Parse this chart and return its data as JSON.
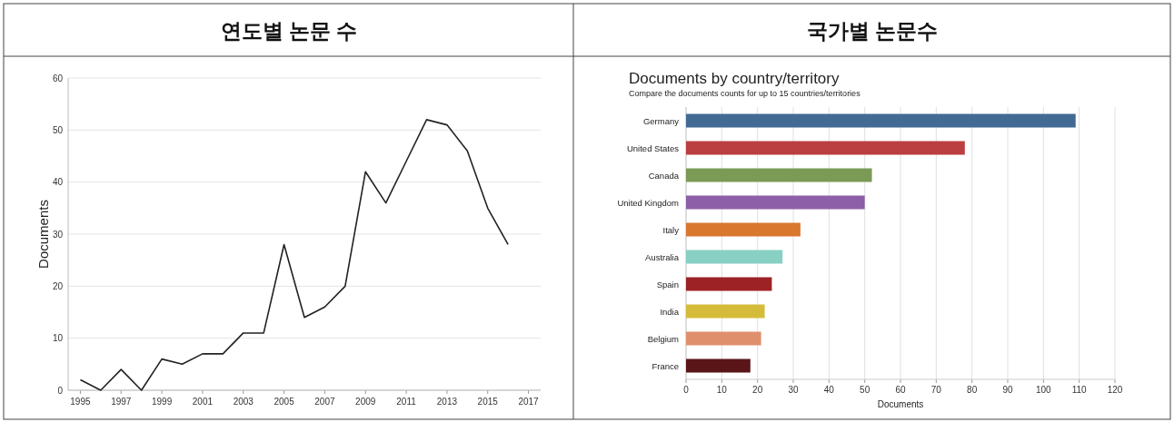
{
  "chart_data": [
    {
      "type": "line",
      "title": "연도별 논문 수",
      "ylabel": "Documents",
      "x": [
        1995,
        1996,
        1997,
        1998,
        1999,
        2000,
        2001,
        2002,
        2003,
        2004,
        2005,
        2006,
        2007,
        2008,
        2009,
        2010,
        2011,
        2012,
        2013,
        2014,
        2015,
        2016
      ],
      "series": [
        {
          "color": "#222222",
          "values": [
            2,
            0,
            4,
            0,
            6,
            5,
            7,
            7,
            11,
            11,
            28,
            14,
            16,
            20,
            42,
            36,
            44,
            52,
            51,
            46,
            35,
            28
          ]
        }
      ],
      "xlim": [
        1994.4,
        2017.6
      ],
      "xticks": [
        1995,
        1997,
        1999,
        2001,
        2003,
        2005,
        2007,
        2009,
        2011,
        2013,
        2015,
        2017
      ],
      "ylim": [
        0,
        60
      ],
      "yticks": [
        0,
        10,
        20,
        30,
        40,
        50,
        60
      ],
      "grid": "y",
      "marker": "none",
      "line_style": "solid"
    },
    {
      "type": "bar",
      "orientation": "horizontal",
      "title": "국가별 논문수",
      "subtitle": "Documents by country/territory",
      "annotations": [
        "Compare the documents counts for up to 15 countries/territories"
      ],
      "xlabel": "Documents",
      "categories": [
        "Germany",
        "United States",
        "Canada",
        "United Kingdom",
        "Italy",
        "Australia",
        "Spain",
        "India",
        "Belgium",
        "France"
      ],
      "values": [
        109,
        78,
        52,
        50,
        32,
        27,
        24,
        22,
        21,
        18
      ],
      "colors": [
        "#436a94",
        "#bb3e40",
        "#7a9a55",
        "#8c5fa8",
        "#d9772f",
        "#88d0c3",
        "#9c2226",
        "#d4bc3a",
        "#e08f6d",
        "#5a1518"
      ],
      "xlim": [
        0,
        120
      ],
      "xticks": [
        0,
        10,
        20,
        30,
        40,
        50,
        60,
        70,
        80,
        90,
        100,
        110,
        120
      ],
      "grid": "x"
    }
  ]
}
